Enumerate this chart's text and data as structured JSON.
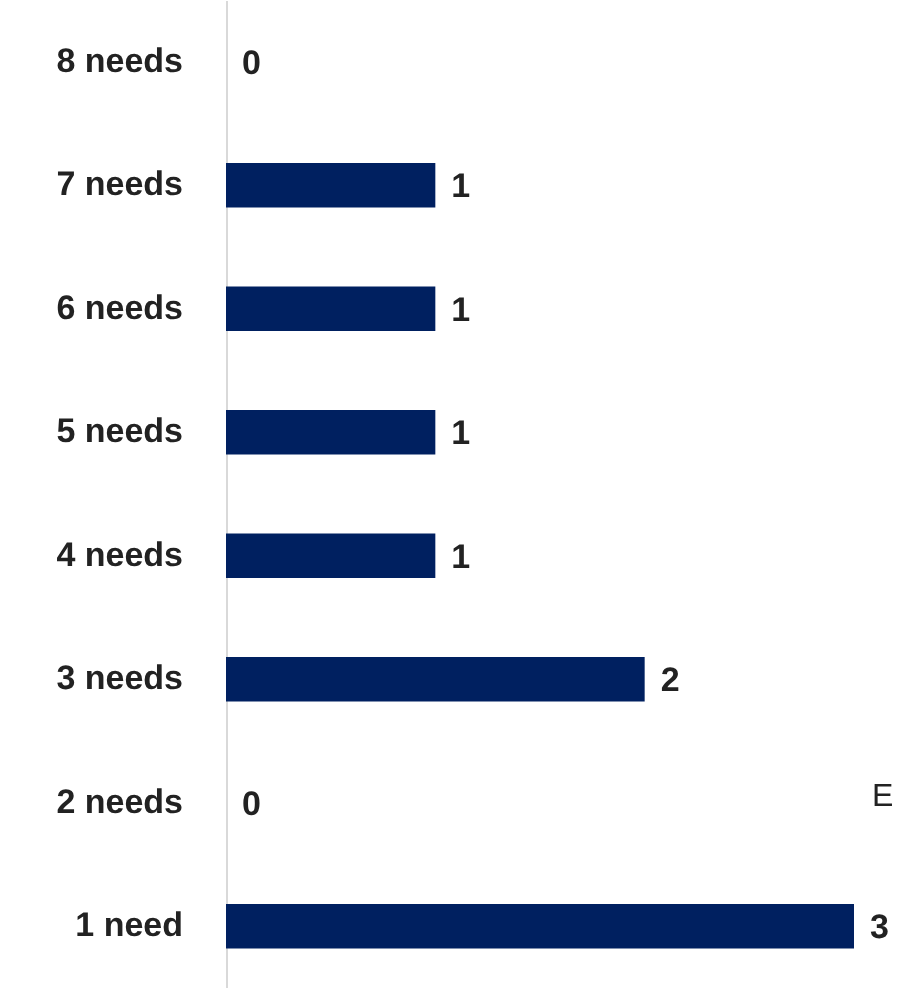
{
  "chart_data": {
    "type": "bar",
    "orientation": "horizontal",
    "categories": [
      "8 needs",
      "7 needs",
      "6 needs",
      "5 needs",
      "4 needs",
      "3 needs",
      "2 needs",
      "1 need"
    ],
    "values": [
      0,
      1,
      1,
      1,
      1,
      2,
      0,
      3
    ],
    "color": "#002060",
    "data_labels": true,
    "annotations": [
      "E"
    ]
  }
}
